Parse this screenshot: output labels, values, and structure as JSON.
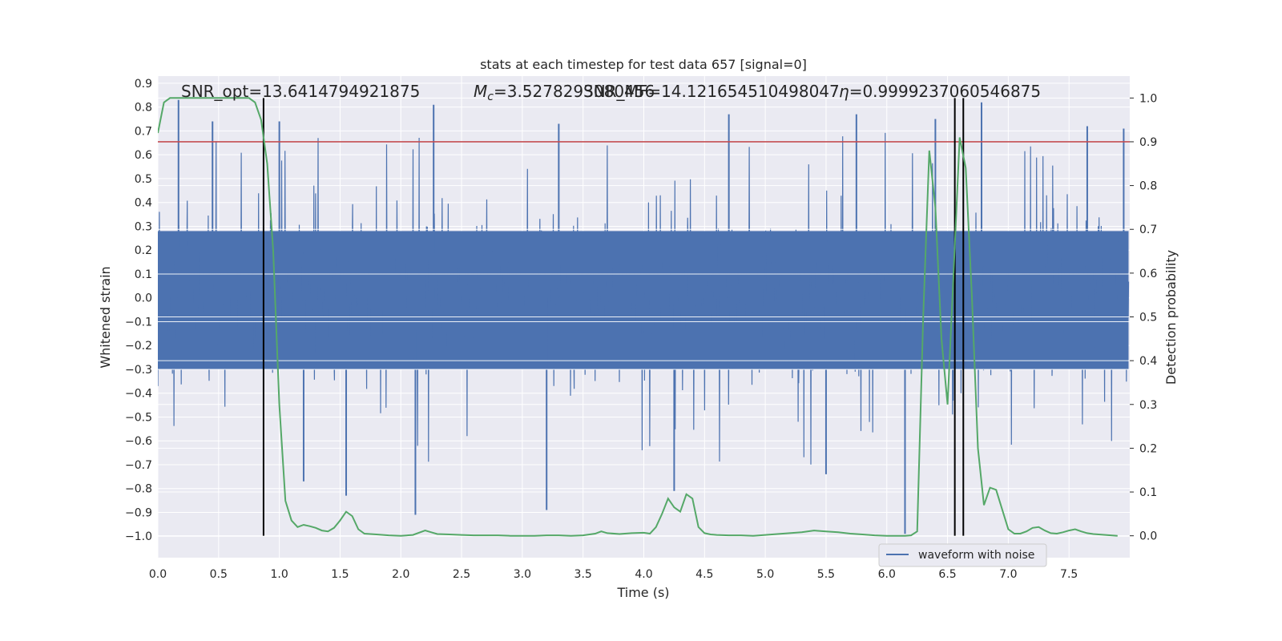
{
  "chart_data": {
    "type": "line",
    "title": "stats at each timestep for test data 657 [signal=0]",
    "xlabel": "Time (s)",
    "ylabel": "Whitened strain",
    "y2label": "Detection probability",
    "xlim": [
      0.0,
      8.0
    ],
    "ylim": [
      -1.09,
      0.93
    ],
    "y2lim": [
      -0.05,
      1.05
    ],
    "xticks": [
      "0.0",
      "0.5",
      "1.0",
      "1.5",
      "2.0",
      "2.5",
      "3.0",
      "3.5",
      "4.0",
      "4.5",
      "5.0",
      "5.5",
      "6.0",
      "6.5",
      "7.0",
      "7.5"
    ],
    "yticks": [
      "0.9",
      "0.8",
      "0.7",
      "0.6",
      "0.5",
      "0.4",
      "0.3",
      "0.2",
      "0.1",
      "0.0",
      "-0.1",
      "-0.2",
      "-0.3",
      "-0.4",
      "-0.5",
      "-0.6",
      "-0.7",
      "-0.8",
      "-0.9",
      "-1.0"
    ],
    "y2ticks": [
      "1.0",
      "0.9",
      "0.8",
      "0.7",
      "0.6",
      "0.5",
      "0.4",
      "0.3",
      "0.2",
      "0.1",
      "0.0"
    ],
    "annotations": {
      "snr_opt": "SNR_opt=13.6414794921875",
      "mc_prefix": "M",
      "mc_sub": "c",
      "mc_value": "=3.5278293080456",
      "snr_mf": "SNR_MF=14.121654510498047",
      "eta_value": "=0.9999237060546875"
    },
    "legend": {
      "label": "waveform with noise",
      "position": "lower-right"
    },
    "threshold": {
      "value": 0.9,
      "axis": "right",
      "color": "#c44e52"
    },
    "vlines": [
      0.87,
      6.56,
      6.63
    ],
    "colors": {
      "waveform": "#4c72b0",
      "probability": "#55a868",
      "threshold": "#c44e52",
      "vline": "#000000",
      "background": "#eaeaf2",
      "grid": "#ffffff"
    },
    "series": [
      {
        "name": "Detection probability",
        "axis": "right",
        "x": [
          0.0,
          0.05,
          0.1,
          0.15,
          0.2,
          0.3,
          0.4,
          0.5,
          0.6,
          0.7,
          0.75,
          0.8,
          0.85,
          0.9,
          0.95,
          1.0,
          1.05,
          1.1,
          1.15,
          1.2,
          1.25,
          1.3,
          1.35,
          1.4,
          1.45,
          1.5,
          1.55,
          1.6,
          1.65,
          1.7,
          1.75,
          1.8,
          1.9,
          2.0,
          2.1,
          2.2,
          2.25,
          2.3,
          2.4,
          2.5,
          2.6,
          2.7,
          2.8,
          2.9,
          3.0,
          3.1,
          3.2,
          3.3,
          3.4,
          3.5,
          3.6,
          3.65,
          3.7,
          3.8,
          3.9,
          4.0,
          4.05,
          4.1,
          4.15,
          4.2,
          4.25,
          4.3,
          4.35,
          4.4,
          4.45,
          4.5,
          4.55,
          4.6,
          4.7,
          4.8,
          4.9,
          5.0,
          5.1,
          5.2,
          5.3,
          5.4,
          5.5,
          5.6,
          5.7,
          5.8,
          5.9,
          6.0,
          6.1,
          6.15,
          6.2,
          6.25,
          6.3,
          6.35,
          6.4,
          6.45,
          6.5,
          6.55,
          6.6,
          6.65,
          6.7,
          6.75,
          6.8,
          6.85,
          6.9,
          6.95,
          7.0,
          7.05,
          7.1,
          7.15,
          7.2,
          7.25,
          7.3,
          7.35,
          7.4,
          7.45,
          7.5,
          7.55,
          7.6,
          7.65,
          7.7,
          7.8,
          7.9
        ],
        "values": [
          0.92,
          0.99,
          1.0,
          1.0,
          1.0,
          1.0,
          1.0,
          1.0,
          1.0,
          1.0,
          1.0,
          0.99,
          0.95,
          0.85,
          0.65,
          0.3,
          0.08,
          0.035,
          0.02,
          0.025,
          0.022,
          0.018,
          0.012,
          0.01,
          0.018,
          0.035,
          0.055,
          0.045,
          0.015,
          0.005,
          0.004,
          0.003,
          0.001,
          0.0,
          0.002,
          0.012,
          0.008,
          0.004,
          0.003,
          0.002,
          0.001,
          0.001,
          0.001,
          0.0,
          0.0,
          0.0,
          0.001,
          0.001,
          0.0,
          0.001,
          0.005,
          0.01,
          0.006,
          0.004,
          0.006,
          0.007,
          0.005,
          0.02,
          0.05,
          0.085,
          0.065,
          0.055,
          0.095,
          0.085,
          0.02,
          0.006,
          0.003,
          0.002,
          0.001,
          0.001,
          0.0,
          0.002,
          0.004,
          0.006,
          0.008,
          0.012,
          0.01,
          0.008,
          0.005,
          0.003,
          0.001,
          0.0,
          0.0,
          0.0,
          0.001,
          0.01,
          0.5,
          0.88,
          0.75,
          0.45,
          0.3,
          0.6,
          0.91,
          0.84,
          0.55,
          0.2,
          0.07,
          0.11,
          0.105,
          0.06,
          0.015,
          0.005,
          0.005,
          0.01,
          0.018,
          0.02,
          0.012,
          0.006,
          0.005,
          0.008,
          0.012,
          0.015,
          0.01,
          0.006,
          0.004,
          0.002,
          0.0
        ]
      },
      {
        "name": "waveform with noise",
        "axis": "left",
        "x": [
          0.0,
          8.0
        ],
        "values": [
          0.0,
          0.0
        ],
        "envelope": {
          "noise_sigma": 0.13,
          "core_band": [
            -0.3,
            0.28
          ],
          "peak_max": [
            0.85,
            0.82
          ],
          "peak_min": [
            -0.99,
            -0.84
          ],
          "deep_spikes": [
            [
              1.55,
              -0.83
            ],
            [
              2.12,
              -0.91
            ],
            [
              3.2,
              -0.89
            ],
            [
              4.25,
              -0.81
            ],
            [
              6.15,
              -0.99
            ],
            [
              5.5,
              -0.74
            ],
            [
              1.2,
              -0.77
            ]
          ],
          "high_spikes": [
            [
              0.17,
              0.83
            ],
            [
              0.45,
              0.74
            ],
            [
              1.0,
              0.74
            ],
            [
              2.27,
              0.81
            ],
            [
              3.3,
              0.73
            ],
            [
              4.7,
              0.77
            ],
            [
              5.75,
              0.77
            ],
            [
              6.4,
              0.75
            ],
            [
              6.78,
              0.82
            ],
            [
              7.65,
              0.72
            ],
            [
              7.95,
              0.71
            ]
          ]
        }
      }
    ]
  }
}
